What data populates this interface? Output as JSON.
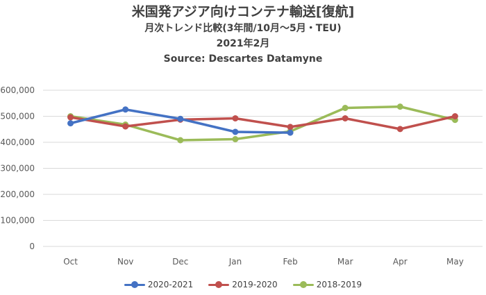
{
  "chart_data": {
    "type": "line",
    "title": "米国発アジア向けコンテナ輸送[復航]",
    "subtitle": "月次トレンド比較(3年間/10月～5月・TEU)",
    "date": "2021年2月",
    "source": "Source: Descartes Datamyne",
    "categories": [
      "Oct",
      "Nov",
      "Dec",
      "Jan",
      "Feb",
      "Mar",
      "Apr",
      "May"
    ],
    "y_tick_labels": [
      "0",
      "100,000",
      "200,000",
      "300,000",
      "400,000",
      "500,000",
      "600,000"
    ],
    "ylim": [
      0,
      600000
    ],
    "grid": true,
    "legend_position": "bottom",
    "series": [
      {
        "name": "2020-2021",
        "color": "#4472C4",
        "values": [
          473000,
          526000,
          490000,
          440000,
          437000,
          null,
          null,
          null
        ]
      },
      {
        "name": "2019-2020",
        "color": "#C0504D",
        "values": [
          496000,
          461000,
          487000,
          492000,
          459000,
          492000,
          451000,
          500000
        ]
      },
      {
        "name": "2018-2019",
        "color": "#9BBB59",
        "values": [
          500000,
          468000,
          408000,
          412000,
          442000,
          532000,
          537000,
          486000
        ]
      }
    ]
  }
}
